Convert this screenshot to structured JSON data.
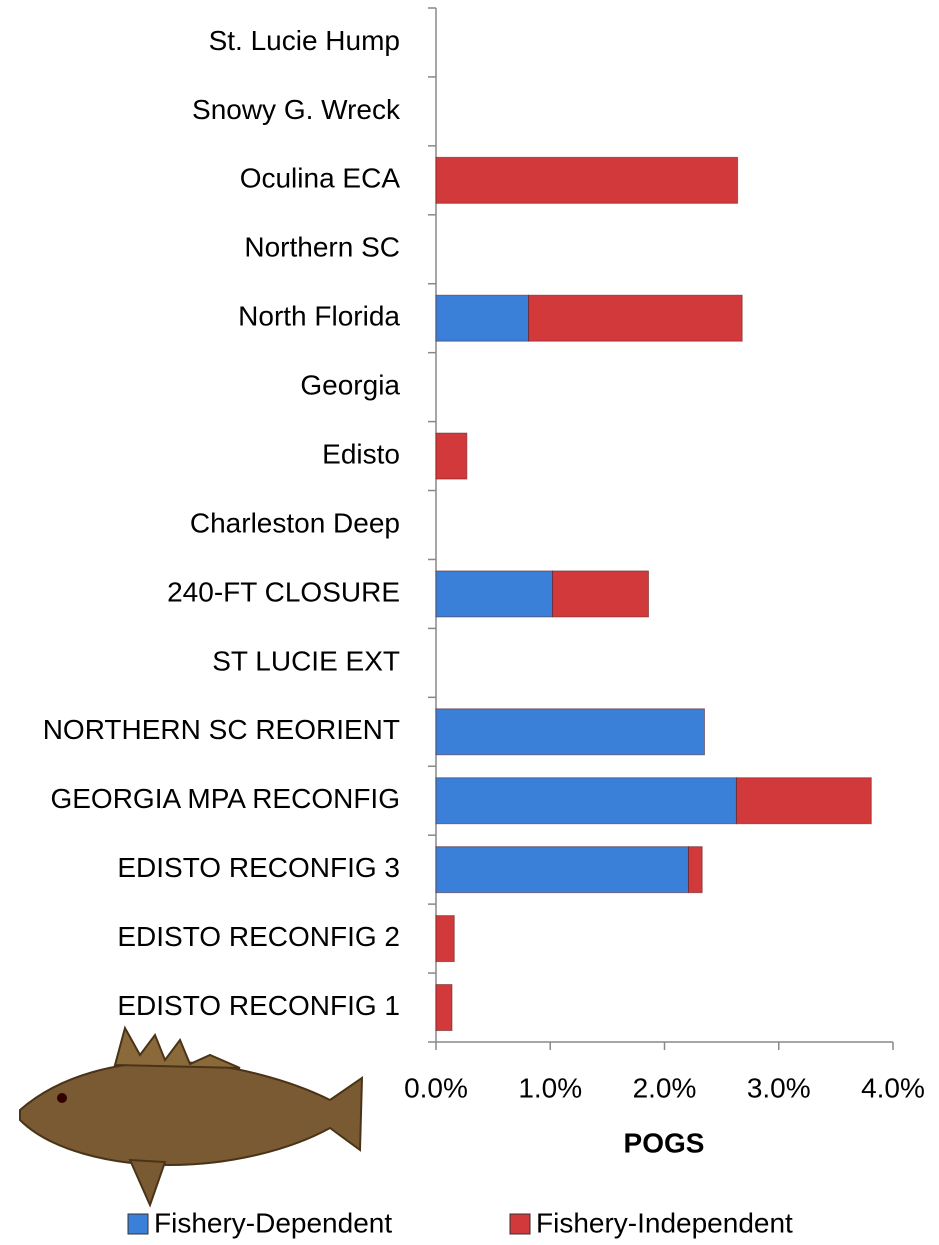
{
  "chart_data": {
    "type": "stacked-barh",
    "categories": [
      "St. Lucie Hump",
      "Snowy G. Wreck",
      "Oculina ECA",
      "Northern SC",
      "North Florida",
      "Georgia",
      "Edisto",
      "Charleston Deep",
      "240-FT CLOSURE",
      "ST LUCIE EXT",
      "NORTHERN SC REORIENT",
      "GEORGIA MPA RECONFIG",
      "EDISTO RECONFIG 3",
      "EDISTO RECONFIG 2",
      "EDISTO RECONFIG 1"
    ],
    "series": [
      {
        "name": "Fishery-Dependent",
        "color": "#3a7fd8",
        "values": [
          0,
          0,
          0,
          0,
          0.81,
          0,
          0,
          0,
          1.02,
          0,
          2.35,
          2.63,
          2.21,
          0,
          0
        ]
      },
      {
        "name": "Fishery-Independent",
        "color": "#d2393b",
        "values": [
          0,
          0,
          2.64,
          0,
          1.87,
          0,
          0.27,
          0,
          0.84,
          0,
          0,
          1.18,
          0.12,
          0.16,
          0.14
        ]
      }
    ],
    "xlabel": "POGS",
    "xlim": [
      0,
      4
    ],
    "xticks": [
      {
        "value": 0,
        "label": "0.0%"
      },
      {
        "value": 1,
        "label": "1.0%"
      },
      {
        "value": 2,
        "label": "2.0%"
      },
      {
        "value": 3,
        "label": "3.0%"
      },
      {
        "value": 4,
        "label": "4.0%"
      }
    ],
    "legend": "bottom"
  }
}
